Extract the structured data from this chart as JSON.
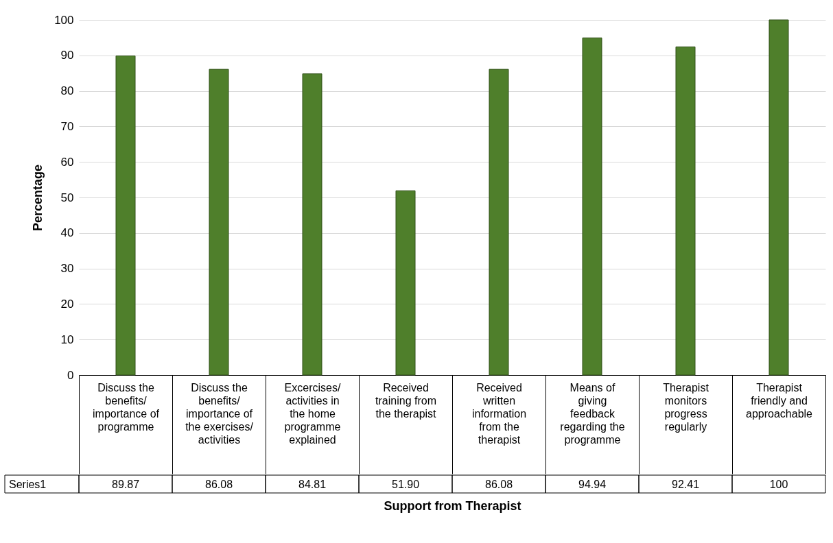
{
  "chart_data": {
    "type": "bar",
    "xlabel": "Support from Therapist",
    "ylabel": "Percentage",
    "categories": [
      "Discuss the benefits/ importance of programme",
      "Discuss the benefits/ importance of the exercises/ activities",
      "Excercises/ activities in the home programme explained",
      "Received training from the therapist",
      "Received written information from the therapist",
      "Means of giving feedback regarding the programme",
      "Therapist monitors progress regularly",
      "Therapist friendly and approachable"
    ],
    "series": [
      {
        "name": "Series1",
        "color": "#4f7f2b",
        "values": [
          89.87,
          86.08,
          84.81,
          51.9,
          86.08,
          94.94,
          92.41,
          100
        ],
        "value_labels": [
          "89.87",
          "86.08",
          "84.81",
          "51.90",
          "86.08",
          "94.94",
          "92.41",
          "100"
        ]
      }
    ],
    "ylim": [
      0,
      100
    ],
    "yticks": [
      0,
      10,
      20,
      30,
      40,
      50,
      60,
      70,
      80,
      90,
      100
    ],
    "grid": "y"
  }
}
